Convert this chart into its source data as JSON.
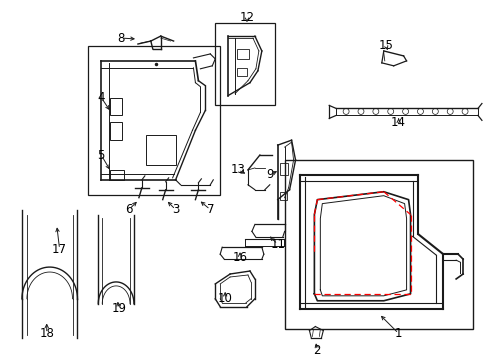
{
  "bg_color": "#ffffff",
  "lc": "#1a1a1a",
  "rc": "#ff0000",
  "fig_width": 4.89,
  "fig_height": 3.6,
  "dpi": 100
}
